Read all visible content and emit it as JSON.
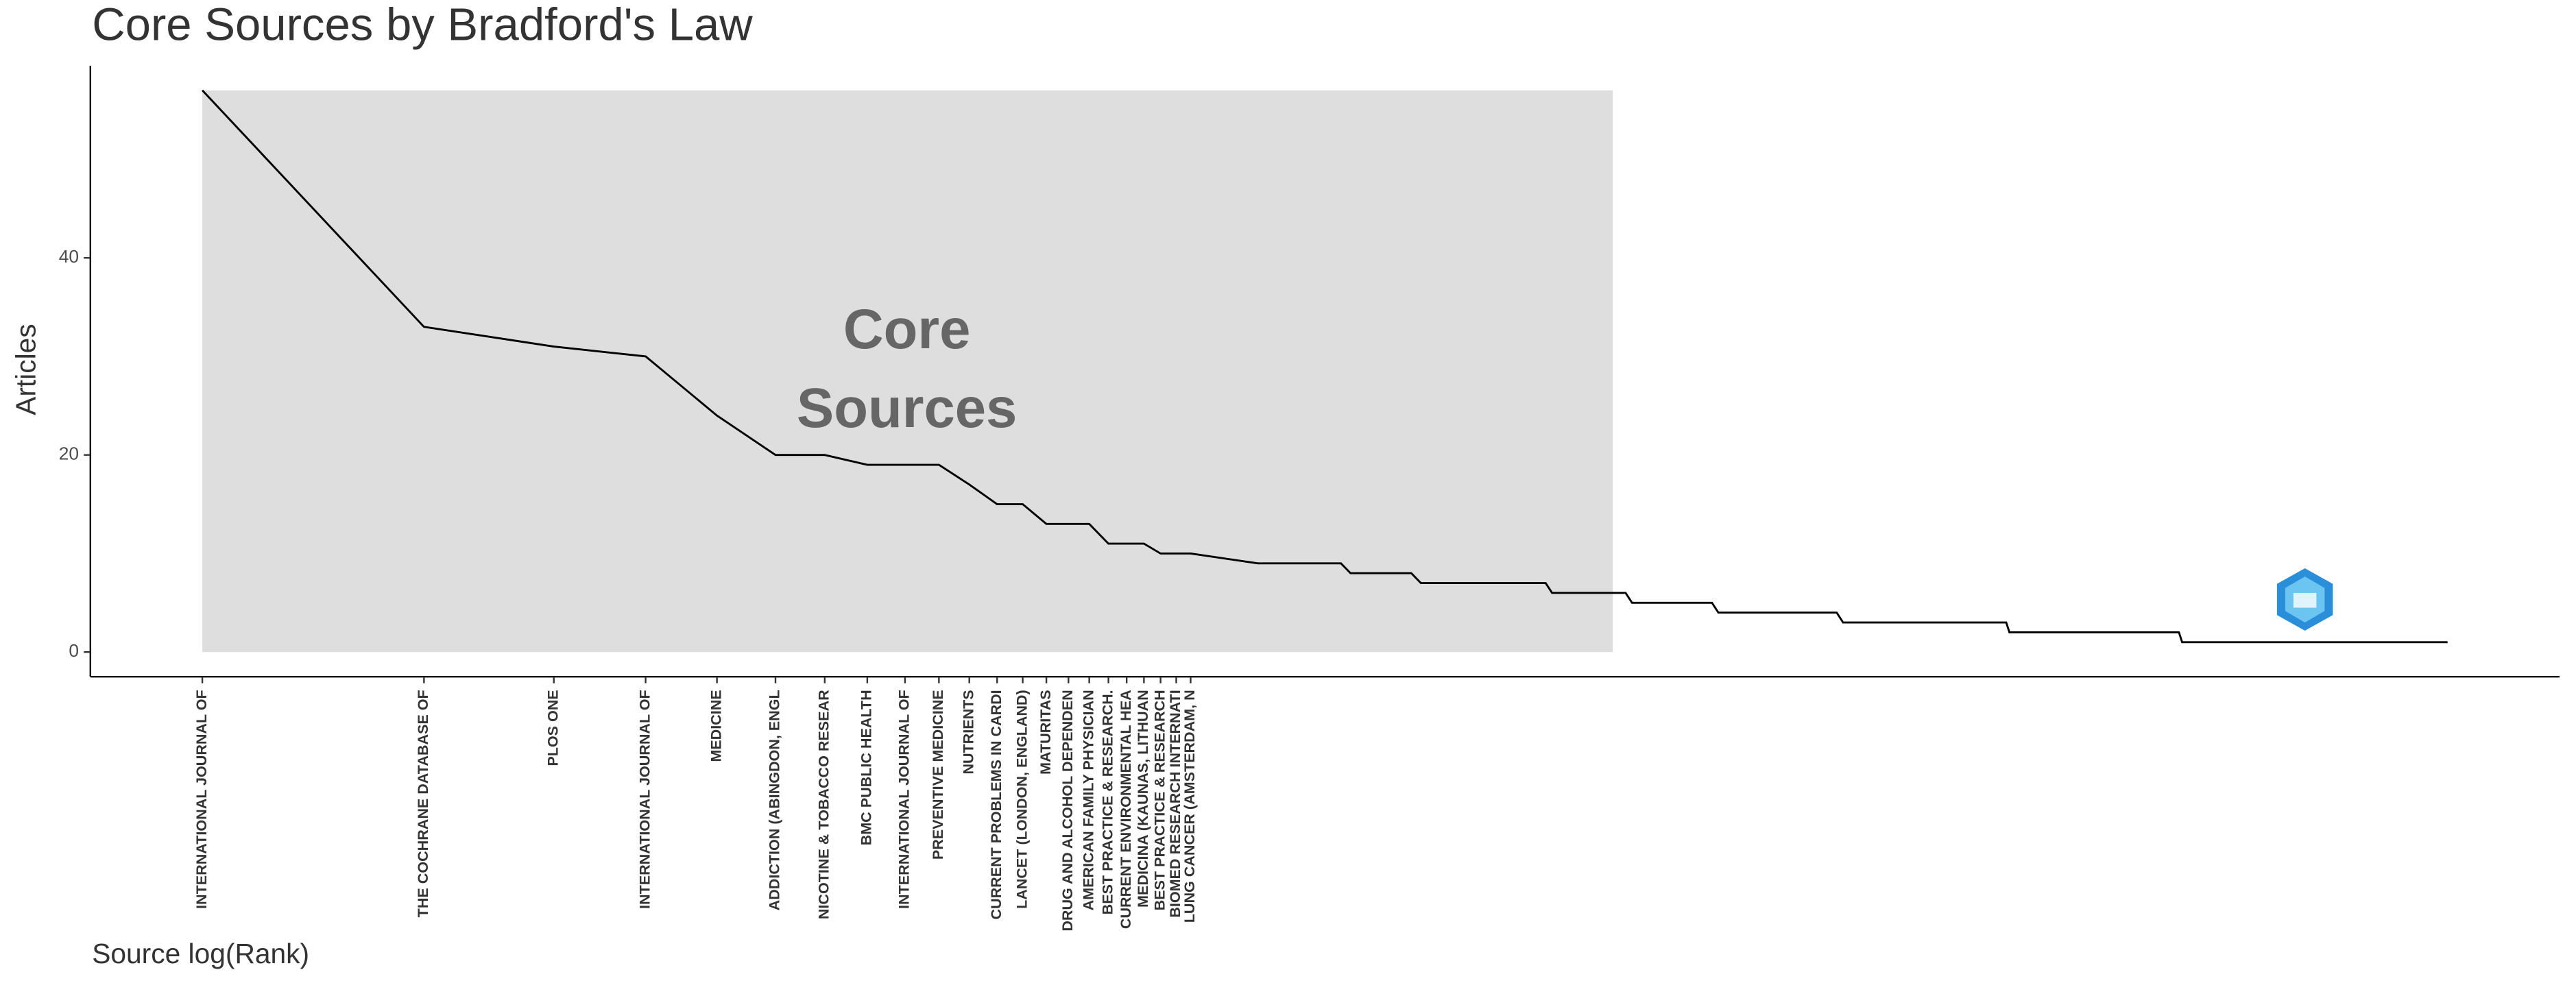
{
  "chart_data": {
    "type": "line",
    "title": "Core Sources by Bradford's Law",
    "x_label": "Source log(Rank)",
    "y_label": "Articles",
    "annotation": [
      "Core",
      "Sources"
    ],
    "x": [
      0,
      0.693,
      1.099,
      1.386,
      1.609,
      1.792,
      1.946,
      2.079,
      2.197,
      2.303,
      2.398,
      2.485,
      2.565,
      2.639,
      2.708,
      2.773,
      2.833,
      2.89,
      2.944,
      2.996,
      3.045,
      3.09,
      3.3,
      3.56,
      3.59,
      3.78,
      3.81,
      4.2,
      4.22,
      4.45,
      4.47,
      4.72,
      4.74,
      5.11,
      5.13,
      5.64,
      5.65,
      6.18,
      6.19,
      7.02
    ],
    "values": [
      57,
      33,
      31,
      30,
      24,
      20,
      20,
      19,
      19,
      19,
      17,
      15,
      15,
      13,
      13,
      13,
      11,
      11,
      11,
      10,
      10,
      10,
      9,
      9,
      8,
      8,
      7,
      7,
      6,
      6,
      5,
      5,
      4,
      4,
      3,
      3,
      2,
      2,
      1,
      1
    ],
    "color": "#000000",
    "core_region": {
      "x": [
        0,
        4.41
      ],
      "y": [
        0,
        57
      ],
      "color": "#dedede"
    },
    "xlim": [
      -0.35,
      7.37
    ],
    "ylim": [
      -2.5,
      59.5
    ],
    "yticks": [
      0,
      20,
      40
    ],
    "xticks": [
      {
        "value": 0,
        "label": "INTERNATIONAL JOURNAL OF"
      },
      {
        "value": 0.693,
        "label": "THE COCHRANE DATABASE OF"
      },
      {
        "value": 1.099,
        "label": "PLOS ONE"
      },
      {
        "value": 1.386,
        "label": "INTERNATIONAL JOURNAL OF"
      },
      {
        "value": 1.609,
        "label": "MEDICINE"
      },
      {
        "value": 1.792,
        "label": "ADDICTION (ABINGDON, ENGL"
      },
      {
        "value": 1.946,
        "label": "NICOTINE & TOBACCO RESEAR"
      },
      {
        "value": 2.079,
        "label": "BMC PUBLIC HEALTH"
      },
      {
        "value": 2.197,
        "label": "INTERNATIONAL JOURNAL OF"
      },
      {
        "value": 2.303,
        "label": "PREVENTIVE MEDICINE"
      },
      {
        "value": 2.398,
        "label": "NUTRIENTS"
      },
      {
        "value": 2.485,
        "label": "CURRENT PROBLEMS IN CARDI"
      },
      {
        "value": 2.565,
        "label": "LANCET (LONDON, ENGLAND)"
      },
      {
        "value": 2.639,
        "label": "MATURITAS"
      },
      {
        "value": 2.708,
        "label": "DRUG AND ALCOHOL DEPENDEN"
      },
      {
        "value": 2.773,
        "label": "AMERICAN FAMILY PHYSICIAN"
      },
      {
        "value": 2.833,
        "label": "BEST PRACTICE & RESEARCH."
      },
      {
        "value": 2.89,
        "label": "CURRENT ENVIRONMENTAL HEA"
      },
      {
        "value": 2.944,
        "label": "MEDICINA (KAUNAS, LITHUAN"
      },
      {
        "value": 2.996,
        "label": "BEST PRACTICE & RESEARCH"
      },
      {
        "value": 3.045,
        "label": "BIOMED RESEARCH INTERNATI"
      },
      {
        "value": 3.09,
        "label": "LUNG CANCER (AMSTERDAM, N"
      }
    ]
  }
}
